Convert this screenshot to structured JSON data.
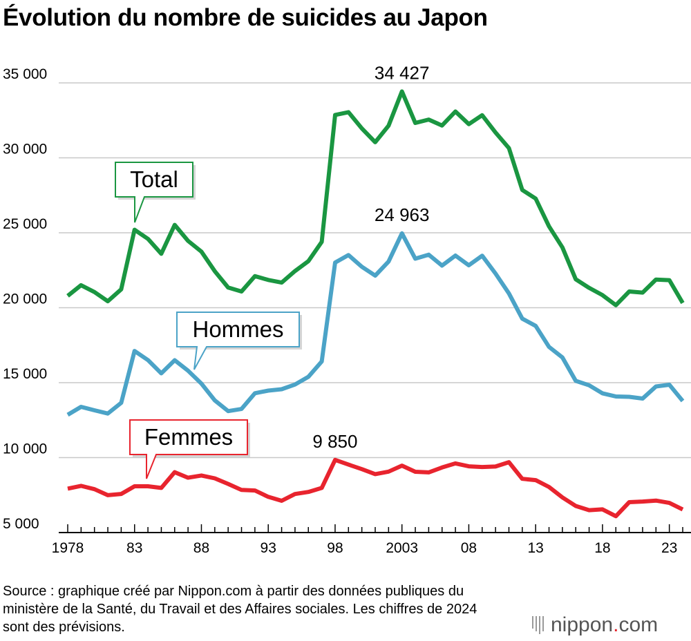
{
  "title": "Évolution du nombre de suicides au Japon",
  "source": "Source : graphique créé par Nippon.com à partir des données publiques du ministère de la Santé, du Travail et des Affaires sociales. Les chiffres de 2024 sont des prévisions.",
  "logo": {
    "main": "nippon",
    "dot": ".",
    "suffix": "com"
  },
  "colors": {
    "total": "#1a9641",
    "hommes": "#4ba3c7",
    "femmes": "#e8242e",
    "grid": "#c8c8c8"
  },
  "chart_data": {
    "type": "line",
    "title": "Évolution du nombre de suicides au Japon",
    "xlabel": "",
    "ylabel": "",
    "x": [
      1978,
      1979,
      1980,
      1981,
      1982,
      1983,
      1984,
      1985,
      1986,
      1987,
      1988,
      1989,
      1990,
      1991,
      1992,
      1993,
      1994,
      1995,
      1996,
      1997,
      1998,
      1999,
      2000,
      2001,
      2002,
      2003,
      2004,
      2005,
      2006,
      2007,
      2008,
      2009,
      2010,
      2011,
      2012,
      2013,
      2014,
      2015,
      2016,
      2017,
      2018,
      2019,
      2020,
      2021,
      2022,
      2023,
      2024
    ],
    "xlim": [
      1978,
      2024
    ],
    "ylim": [
      5000,
      35000
    ],
    "grid": true,
    "x_ticks": [
      {
        "value": 1978,
        "label": "1978"
      },
      {
        "value": 1983,
        "label": "83"
      },
      {
        "value": 1988,
        "label": "88"
      },
      {
        "value": 1993,
        "label": "93"
      },
      {
        "value": 1998,
        "label": "98"
      },
      {
        "value": 2003,
        "label": "2003"
      },
      {
        "value": 2008,
        "label": "08"
      },
      {
        "value": 2013,
        "label": "13"
      },
      {
        "value": 2018,
        "label": "18"
      },
      {
        "value": 2023,
        "label": "23"
      }
    ],
    "y_ticks": [
      {
        "value": 5000,
        "label": "5 000"
      },
      {
        "value": 10000,
        "label": "10 000"
      },
      {
        "value": 15000,
        "label": "15 000"
      },
      {
        "value": 20000,
        "label": "20 000"
      },
      {
        "value": 25000,
        "label": "25 000"
      },
      {
        "value": 30000,
        "label": "30 000"
      },
      {
        "value": 35000,
        "label": "35 000"
      }
    ],
    "series": [
      {
        "key": "total",
        "name": "Total",
        "values": [
          20788,
          21503,
          21048,
          20434,
          21228,
          25202,
          24596,
          23599,
          25524,
          24460,
          23742,
          22436,
          21346,
          21084,
          22104,
          21851,
          21679,
          22445,
          23104,
          24391,
          32863,
          33048,
          31957,
          31042,
          32143,
          34427,
          32325,
          32552,
          32155,
          33093,
          32249,
          32845,
          31690,
          30651,
          27858,
          27283,
          25427,
          24025,
          21897,
          21321,
          20840,
          20169,
          21081,
          21007,
          21881,
          21837,
          20320
        ]
      },
      {
        "key": "hommes",
        "name": "Hommes",
        "values": [
          12859,
          13386,
          13155,
          12942,
          13654,
          17116,
          16508,
          15624,
          16497,
          15802,
          14934,
          13818,
          13102,
          13242,
          14296,
          14468,
          14560,
          14874,
          15393,
          16416,
          23013,
          23512,
          22727,
          22144,
          23080,
          24963,
          23272,
          23540,
          22813,
          23478,
          22831,
          23472,
          22283,
          20955,
          19273,
          18787,
          17386,
          16681,
          15121,
          14826,
          14290,
          14078,
          14055,
          13939,
          14746,
          14862,
          13781
        ]
      },
      {
        "key": "femmes",
        "name": "Femmes",
        "values": [
          7929,
          8117,
          7893,
          7492,
          7574,
          8086,
          8088,
          7975,
          9027,
          8658,
          8808,
          8618,
          8244,
          7842,
          7808,
          7383,
          7119,
          7571,
          7711,
          7975,
          9850,
          9536,
          9230,
          8898,
          9063,
          9464,
          9053,
          9012,
          9342,
          9615,
          9418,
          9373,
          9407,
          9696,
          8585,
          8496,
          8041,
          7344,
          6776,
          6495,
          6550,
          6091,
          7026,
          7068,
          7135,
          6975,
          6539
        ]
      }
    ],
    "annotations": [
      {
        "series": "total",
        "x": 2003,
        "label": "34 427"
      },
      {
        "series": "hommes",
        "x": 2003,
        "label": "24 963"
      },
      {
        "series": "femmes",
        "x": 1998,
        "label": "9 850"
      }
    ],
    "callouts": [
      {
        "series": "total",
        "label": "Total",
        "x": 1983
      },
      {
        "series": "hommes",
        "label": "Hommes",
        "x": 1988
      },
      {
        "series": "femmes",
        "label": "Femmes",
        "x": 1984
      }
    ]
  }
}
